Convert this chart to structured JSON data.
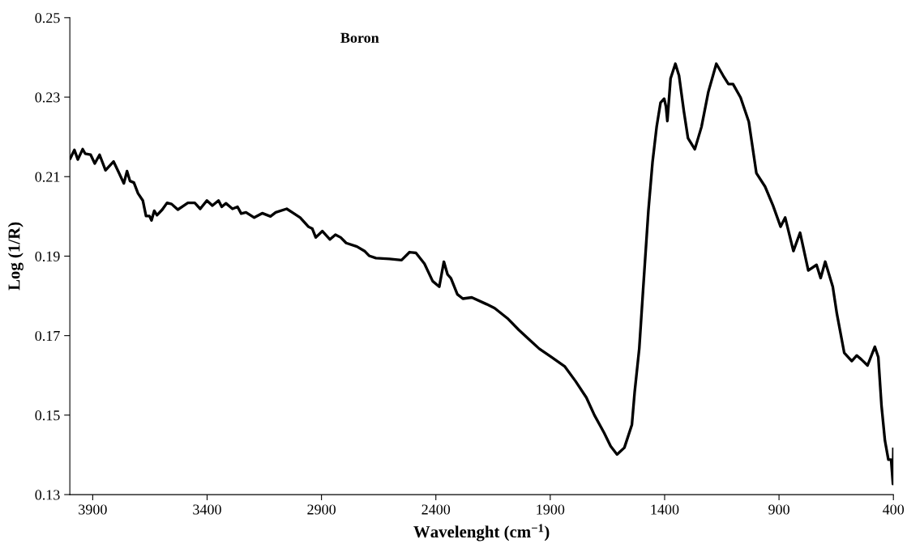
{
  "chart_data": {
    "type": "line",
    "title": "Boron",
    "xlabel": "Wavelenght (cm$^{−1}$)",
    "ylabel": "Log (1/R)",
    "xlim": [
      4000,
      400
    ],
    "xticks": [
      3900,
      3400,
      2900,
      2400,
      1900,
      1400,
      900,
      400
    ],
    "ylim": [
      0.13,
      0.25
    ],
    "yticks": [
      0.13,
      0.15,
      0.17,
      0.19,
      0.21,
      0.23,
      0.25
    ],
    "grid": false,
    "marker": "none",
    "line_style": "solid",
    "series": [
      {
        "color": "#000000",
        "x": [
          3998,
          3980,
          3965,
          3944,
          3933,
          3909,
          3891,
          3870,
          3844,
          3809,
          3785,
          3764,
          3750,
          3737,
          3720,
          3702,
          3681,
          3667,
          3652,
          3643,
          3631,
          3619,
          3596,
          3575,
          3555,
          3528,
          3484,
          3454,
          3430,
          3401,
          3377,
          3350,
          3336,
          3318,
          3289,
          3267,
          3251,
          3230,
          3194,
          3159,
          3123,
          3100,
          3052,
          3028,
          2993,
          2957,
          2940,
          2925,
          2896,
          2863,
          2839,
          2816,
          2792,
          2745,
          2710,
          2692,
          2662,
          2603,
          2550,
          2515,
          2487,
          2450,
          2414,
          2385,
          2365,
          2349,
          2334,
          2306,
          2282,
          2243,
          2178,
          2143,
          2084,
          2037,
          1990,
          1948,
          1895,
          1836,
          1789,
          1742,
          1707,
          1665,
          1636,
          1608,
          1576,
          1543,
          1531,
          1511,
          1494,
          1471,
          1453,
          1435,
          1418,
          1402,
          1394,
          1388,
          1374,
          1353,
          1337,
          1316,
          1298,
          1268,
          1239,
          1209,
          1174,
          1144,
          1121,
          1101,
          1068,
          1032,
          999,
          961,
          926,
          893,
          873,
          837,
          808,
          772,
          736,
          718,
          698,
          665,
          647,
          615,
          582,
          560,
          540,
          513,
          481,
          466,
          452,
          437,
          422,
          410,
          402,
          400
        ],
        "values": [
          0.2146,
          0.2167,
          0.2143,
          0.2169,
          0.2158,
          0.2155,
          0.2133,
          0.2155,
          0.2116,
          0.2138,
          0.2109,
          0.2083,
          0.2114,
          0.2089,
          0.2085,
          0.2058,
          0.204,
          0.2001,
          0.2001,
          0.199,
          0.2014,
          0.2003,
          0.2017,
          0.2034,
          0.2031,
          0.2017,
          0.2034,
          0.2034,
          0.2019,
          0.204,
          0.2027,
          0.204,
          0.2024,
          0.2033,
          0.2019,
          0.2024,
          0.2007,
          0.201,
          0.1997,
          0.2008,
          0.2,
          0.201,
          0.2019,
          0.201,
          0.1997,
          0.1974,
          0.1969,
          0.1947,
          0.1963,
          0.1942,
          0.1954,
          0.1947,
          0.1933,
          0.1924,
          0.1912,
          0.1901,
          0.1895,
          0.1893,
          0.189,
          0.191,
          0.1908,
          0.1881,
          0.1837,
          0.1823,
          0.1886,
          0.1854,
          0.1844,
          0.1804,
          0.1793,
          0.1796,
          0.1779,
          0.1769,
          0.1742,
          0.1714,
          0.1689,
          0.1667,
          0.1646,
          0.1622,
          0.1585,
          0.1544,
          0.15,
          0.1456,
          0.1422,
          0.1401,
          0.1418,
          0.1476,
          0.1558,
          0.1667,
          0.1816,
          0.2014,
          0.2136,
          0.2225,
          0.2286,
          0.2296,
          0.2276,
          0.224,
          0.2347,
          0.2384,
          0.2354,
          0.2265,
          0.2197,
          0.2169,
          0.2225,
          0.2313,
          0.2384,
          0.2354,
          0.2333,
          0.2333,
          0.2299,
          0.2238,
          0.2109,
          0.2075,
          0.2027,
          0.1974,
          0.1997,
          0.1913,
          0.1959,
          0.1864,
          0.1878,
          0.1845,
          0.1886,
          0.1823,
          0.1755,
          0.1657,
          0.1636,
          0.165,
          0.164,
          0.1625,
          0.1672,
          0.1646,
          0.1524,
          0.1436,
          0.1388,
          0.1388,
          0.1327,
          0.1415
        ]
      }
    ]
  }
}
